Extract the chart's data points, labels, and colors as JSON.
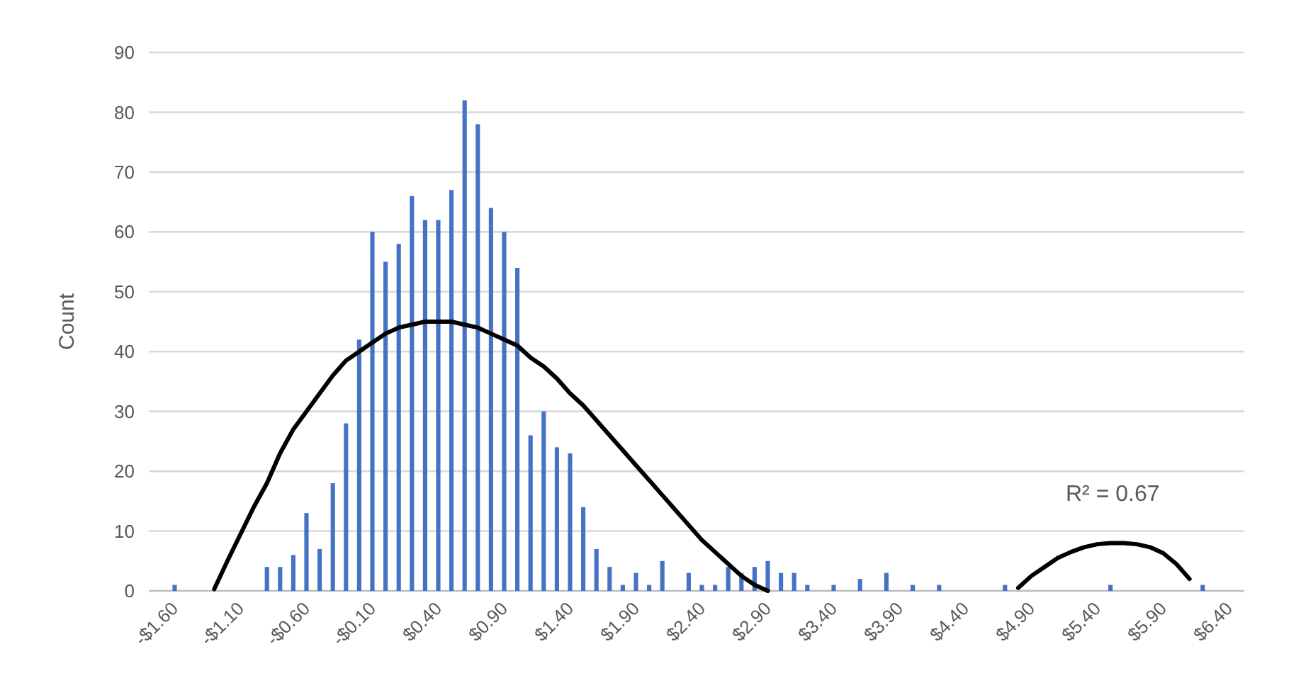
{
  "chart_data": {
    "type": "bar",
    "ylabel": "Count",
    "categories": [
      "-$1.60",
      null,
      null,
      null,
      null,
      "-$1.10",
      null,
      null,
      null,
      null,
      "-$0.60",
      null,
      null,
      null,
      null,
      "-$0.10",
      null,
      null,
      null,
      null,
      "$0.40",
      null,
      null,
      null,
      null,
      "$0.90",
      null,
      null,
      null,
      null,
      "$1.40",
      null,
      null,
      null,
      null,
      "$1.90",
      null,
      null,
      null,
      null,
      "$2.40",
      null,
      null,
      null,
      null,
      "$2.90",
      null,
      null,
      null,
      null,
      "$3.40",
      null,
      null,
      null,
      null,
      "$3.90",
      null,
      null,
      null,
      null,
      "$4.40",
      null,
      null,
      null,
      null,
      "$4.90",
      null,
      null,
      null,
      null,
      "$5.40",
      null,
      null,
      null,
      null,
      "$5.90",
      null,
      null,
      null,
      null,
      "$6.40"
    ],
    "series": [
      {
        "color": "#4472c4",
        "values": [
          1,
          0,
          0,
          0,
          0,
          0,
          0,
          4,
          4,
          6,
          13,
          7,
          18,
          28,
          42,
          60,
          55,
          58,
          66,
          62,
          62,
          67,
          82,
          78,
          64,
          60,
          54,
          26,
          30,
          24,
          23,
          14,
          7,
          4,
          1,
          3,
          1,
          5,
          0,
          3,
          1,
          1,
          4,
          3,
          4,
          5,
          3,
          3,
          1,
          0,
          1,
          0,
          2,
          0,
          3,
          0,
          1,
          0,
          1,
          0,
          0,
          0,
          0,
          1,
          0,
          0,
          0,
          0,
          0,
          0,
          0,
          1,
          0,
          0,
          0,
          0,
          0,
          0,
          1,
          0,
          0
        ]
      },
      {
        "type": "line",
        "color": "#000000",
        "values": [
          null,
          null,
          null,
          0.3,
          5,
          9.5,
          14,
          18,
          23,
          27,
          30,
          33,
          36,
          38.5,
          40,
          41.5,
          43,
          44,
          44.5,
          45,
          45,
          45,
          44.5,
          44,
          43,
          42,
          41,
          39,
          37.5,
          35.5,
          33,
          31,
          28.5,
          26,
          23.5,
          21,
          18.5,
          16,
          13.5,
          11,
          8.5,
          6.5,
          4.5,
          2.5,
          1,
          0,
          null,
          null,
          null,
          null,
          null,
          null,
          null,
          null,
          null,
          null,
          null,
          null,
          null,
          null,
          null,
          null,
          null,
          null,
          0.5,
          2.5,
          4,
          5.5,
          6.5,
          7.3,
          7.8,
          8,
          8,
          7.8,
          7.3,
          6.3,
          4.5,
          2,
          null,
          null,
          null
        ]
      }
    ],
    "ylim": [
      0,
      90
    ],
    "yticks": [
      0,
      10,
      20,
      30,
      40,
      50,
      60,
      70,
      80,
      90
    ],
    "grid": "y",
    "annotations": [
      "R² = 0.67"
    ]
  }
}
